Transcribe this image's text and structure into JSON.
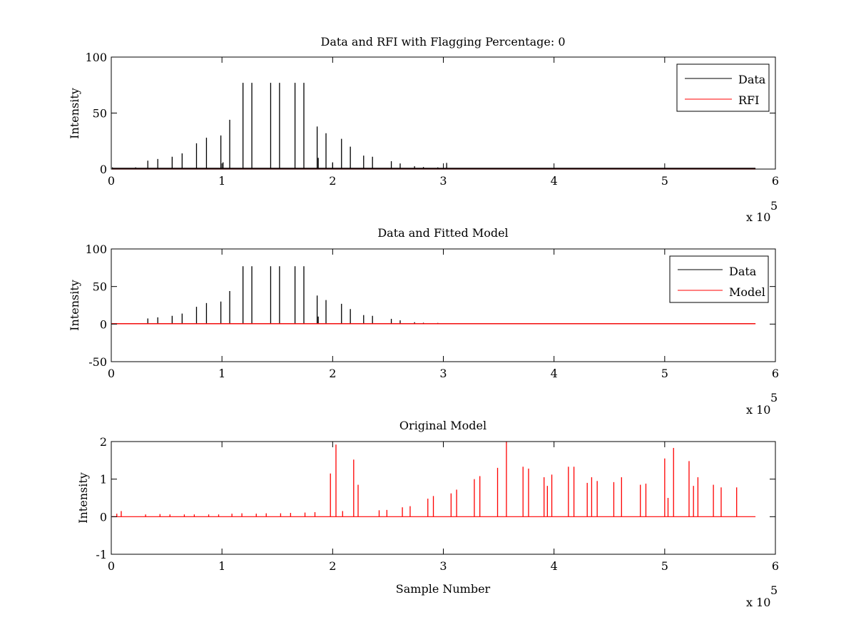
{
  "figure": {
    "background": "#ffffff"
  },
  "chart_data": [
    {
      "type": "line",
      "title": "Data and RFI with Flagging Percentage: 0",
      "xlabel": "",
      "ylabel": "Intensity",
      "xlim": [
        0,
        6
      ],
      "ylim": [
        0,
        100
      ],
      "x_ticks": [
        "0",
        "1",
        "2",
        "3",
        "4",
        "5",
        "6"
      ],
      "y_ticks": [
        "0",
        "50",
        "100"
      ],
      "x_multiplier": "x 10",
      "x_multiplier_exponent": "5",
      "grid": false,
      "legend_position": "top-right",
      "series": [
        {
          "name": "Data",
          "color": "#000000",
          "style": "spikes",
          "baseline": 0.7,
          "x": [
            0.01,
            0.22,
            0.33,
            0.42,
            0.55,
            0.64,
            0.77,
            0.86,
            0.99,
            1.01,
            1.07,
            1.19,
            1.27,
            1.44,
            1.52,
            1.66,
            1.74,
            1.86,
            1.87,
            1.94,
            2.0,
            2.08,
            2.16,
            2.28,
            2.36,
            2.53,
            2.61,
            2.74,
            2.82,
            2.95,
            3.03
          ],
          "y": [
            1.5,
            1.5,
            7.5,
            9,
            11,
            14,
            23,
            28,
            30,
            6,
            44,
            77,
            77,
            77,
            77,
            77,
            77,
            38,
            10,
            32,
            6,
            27,
            20,
            12,
            11,
            7,
            5,
            2.5,
            1.8,
            1.5,
            5.5
          ]
        },
        {
          "name": "RFI",
          "color": "#ff0000",
          "style": "spikes",
          "baseline": 0,
          "x": [],
          "y": []
        }
      ]
    },
    {
      "type": "line",
      "title": "Data and Fitted Model",
      "xlabel": "",
      "ylabel": "Intensity",
      "xlim": [
        0,
        6
      ],
      "ylim": [
        -50,
        100
      ],
      "x_ticks": [
        "0",
        "1",
        "2",
        "3",
        "4",
        "5",
        "6"
      ],
      "y_ticks": [
        "-50",
        "0",
        "50",
        "100"
      ],
      "x_multiplier": "x 10",
      "x_multiplier_exponent": "5",
      "grid": false,
      "legend_position": "top-right",
      "series": [
        {
          "name": "Data",
          "color": "#000000",
          "style": "spikes",
          "baseline": 0.5,
          "x": [
            0.33,
            0.42,
            0.55,
            0.64,
            0.77,
            0.86,
            0.99,
            1.07,
            1.19,
            1.27,
            1.44,
            1.52,
            1.66,
            1.74,
            1.86,
            1.87,
            1.94,
            2.08,
            2.16,
            2.28,
            2.36,
            2.53,
            2.61,
            2.74,
            2.82,
            2.95
          ],
          "y": [
            7.5,
            9,
            11,
            14,
            23,
            28,
            30,
            44,
            77,
            77,
            77,
            77,
            77,
            77,
            38,
            10,
            32,
            27,
            20,
            12,
            11,
            7,
            5,
            2.5,
            1.8,
            1.5
          ]
        },
        {
          "name": "Model",
          "color": "#ff0000",
          "style": "line",
          "x": [
            0,
            5.82
          ],
          "y": [
            0.5,
            0.5
          ]
        }
      ]
    },
    {
      "type": "line",
      "title": "Original Model",
      "xlabel": "Sample Number",
      "ylabel": "Intensity",
      "xlim": [
        0,
        6
      ],
      "ylim": [
        -1,
        2
      ],
      "x_ticks": [
        "0",
        "1",
        "2",
        "3",
        "4",
        "5",
        "6"
      ],
      "y_ticks": [
        "-1",
        "0",
        "1",
        "2"
      ],
      "x_multiplier": "x 10",
      "x_multiplier_exponent": "5",
      "grid": false,
      "series": [
        {
          "color": "#ff0000",
          "style": "spikes",
          "baseline": 0,
          "x": [
            0.05,
            0.09,
            0.31,
            0.44,
            0.53,
            0.66,
            0.75,
            0.88,
            0.97,
            1.09,
            1.18,
            1.31,
            1.4,
            1.53,
            1.62,
            1.75,
            1.84,
            1.98,
            2.03,
            2.09,
            2.19,
            2.23,
            2.42,
            2.49,
            2.63,
            2.7,
            2.86,
            2.91,
            3.07,
            3.12,
            3.28,
            3.33,
            3.49,
            3.57,
            3.72,
            3.77,
            3.91,
            3.94,
            3.98,
            4.13,
            4.18,
            4.3,
            4.34,
            4.39,
            4.54,
            4.61,
            4.78,
            4.83,
            5.0,
            5.03,
            5.08,
            5.22,
            5.26,
            5.3,
            5.44,
            5.51,
            5.65
          ],
          "y": [
            0.08,
            0.15,
            0.06,
            0.07,
            0.06,
            0.06,
            0.06,
            0.06,
            0.06,
            0.08,
            0.09,
            0.08,
            0.09,
            0.09,
            0.1,
            0.11,
            0.12,
            1.15,
            1.92,
            0.15,
            1.52,
            0.85,
            0.17,
            0.18,
            0.25,
            0.28,
            0.48,
            0.55,
            0.62,
            0.72,
            1.0,
            1.08,
            1.3,
            2.0,
            1.33,
            1.28,
            1.05,
            0.82,
            1.12,
            1.33,
            1.33,
            0.9,
            1.05,
            0.95,
            0.92,
            1.05,
            0.85,
            0.88,
            1.55,
            0.5,
            1.83,
            1.48,
            0.82,
            1.05,
            0.85,
            0.78,
            0.78
          ]
        }
      ]
    }
  ]
}
